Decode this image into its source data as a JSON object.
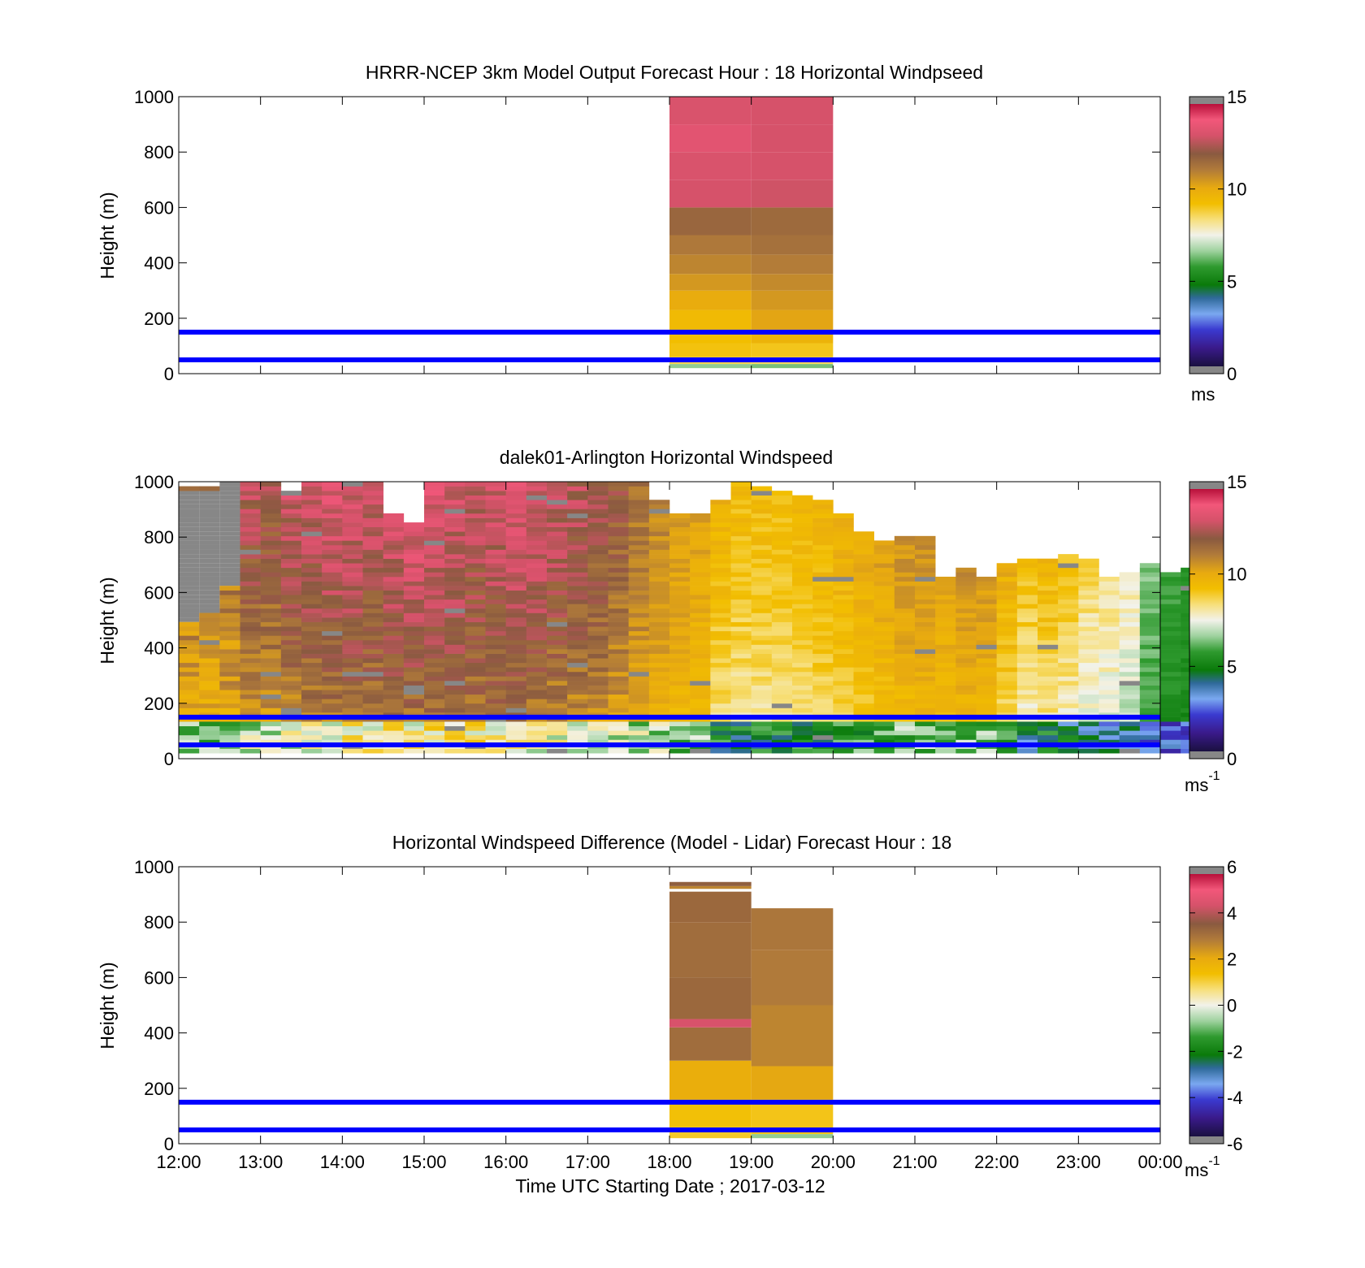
{
  "chart_data": [
    {
      "type": "heatmap",
      "title": "HRRR-NCEP 3km Model Output   Forecast Hour : 18 Horizontal Windpseed",
      "ylabel": "Height (m)",
      "ylim": [
        0,
        1000
      ],
      "yticks": [
        "0",
        "200",
        "400",
        "600",
        "800",
        "1000"
      ],
      "colorbar": {
        "range": [
          0,
          15
        ],
        "ticks": [
          "0",
          "5",
          "10",
          "15"
        ],
        "unit": "ms",
        "unit_sup": ""
      },
      "reference_lines_m": [
        50,
        150
      ],
      "columns": [
        {
          "x_hour": 18,
          "levels": [
            {
              "z0": 20,
              "z1": 35,
              "v": 6.5
            },
            {
              "z0": 35,
              "z1": 60,
              "v": 8.7
            },
            {
              "z0": 60,
              "z1": 110,
              "v": 9.2
            },
            {
              "z0": 110,
              "z1": 160,
              "v": 9.3
            },
            {
              "z0": 160,
              "z1": 230,
              "v": 9.5
            },
            {
              "z0": 230,
              "z1": 300,
              "v": 10.1
            },
            {
              "z0": 300,
              "z1": 360,
              "v": 10.6
            },
            {
              "z0": 360,
              "z1": 430,
              "v": 11.0
            },
            {
              "z0": 430,
              "z1": 500,
              "v": 11.3
            },
            {
              "z0": 500,
              "z1": 600,
              "v": 11.8
            },
            {
              "z0": 600,
              "z1": 700,
              "v": 13.2
            },
            {
              "z0": 700,
              "z1": 800,
              "v": 13.3
            },
            {
              "z0": 800,
              "z1": 900,
              "v": 13.6
            },
            {
              "z0": 900,
              "z1": 1000,
              "v": 13.3
            }
          ]
        },
        {
          "x_hour": 19,
          "levels": [
            {
              "z0": 20,
              "z1": 35,
              "v": 6.3
            },
            {
              "z0": 35,
              "z1": 60,
              "v": 8.6
            },
            {
              "z0": 60,
              "z1": 110,
              "v": 9.1
            },
            {
              "z0": 110,
              "z1": 160,
              "v": 9.8
            },
            {
              "z0": 160,
              "z1": 230,
              "v": 10.3
            },
            {
              "z0": 230,
              "z1": 300,
              "v": 10.6
            },
            {
              "z0": 300,
              "z1": 360,
              "v": 10.9
            },
            {
              "z0": 360,
              "z1": 430,
              "v": 11.2
            },
            {
              "z0": 430,
              "z1": 500,
              "v": 11.5
            },
            {
              "z0": 500,
              "z1": 600,
              "v": 11.7
            },
            {
              "z0": 600,
              "z1": 700,
              "v": 13.1
            },
            {
              "z0": 700,
              "z1": 800,
              "v": 13.2
            },
            {
              "z0": 800,
              "z1": 900,
              "v": 13.2
            },
            {
              "z0": 900,
              "z1": 1000,
              "v": 13.2
            }
          ]
        }
      ]
    },
    {
      "type": "heatmap",
      "title": "dalek01-Arlington  Horizontal Windspeed",
      "ylabel": "Height (m)",
      "ylim": [
        0,
        1000
      ],
      "yticks": [
        "0",
        "200",
        "400",
        "600",
        "800",
        "1000"
      ],
      "colorbar": {
        "range": [
          0,
          15
        ],
        "ticks": [
          "0",
          "5",
          "10",
          "15"
        ],
        "unit": "ms",
        "unit_sup": "-1"
      },
      "reference_lines_m": [
        50,
        150
      ],
      "time_step_hours": 0.25,
      "profiles": [
        {
          "top": 970,
          "lo": 8.8,
          "hi": 12.0,
          "noise": 1.6,
          "gap_lo": 480,
          "gap_hi": 970
        },
        {
          "top": 970,
          "lo": 9.0,
          "hi": 11.5,
          "noise": 1.4,
          "gap_lo": 520,
          "gap_hi": 970
        },
        {
          "top": 1000,
          "lo": 9.2,
          "hi": 11.8,
          "noise": 1.6,
          "gap_lo": 620,
          "gap_hi": 1000
        },
        {
          "top": 1000,
          "lo": 9.5,
          "hi": 12.8,
          "noise": 1.5
        },
        {
          "top": 1000,
          "lo": 9.6,
          "hi": 12.5,
          "noise": 1.4
        },
        {
          "top": 960,
          "lo": 9.8,
          "hi": 13.0,
          "noise": 1.6
        },
        {
          "top": 1000,
          "lo": 10.0,
          "hi": 13.2,
          "noise": 1.5
        },
        {
          "top": 1000,
          "lo": 10.2,
          "hi": 13.4,
          "noise": 1.5
        },
        {
          "top": 1000,
          "lo": 10.5,
          "hi": 13.3,
          "noise": 1.4
        },
        {
          "top": 1000,
          "lo": 10.4,
          "hi": 13.0,
          "noise": 1.5
        },
        {
          "top": 870,
          "lo": 10.6,
          "hi": 13.2,
          "noise": 1.4
        },
        {
          "top": 850,
          "lo": 10.4,
          "hi": 13.4,
          "noise": 1.5
        },
        {
          "top": 1000,
          "lo": 10.6,
          "hi": 13.5,
          "noise": 1.4
        },
        {
          "top": 1000,
          "lo": 10.8,
          "hi": 13.2,
          "noise": 1.4
        },
        {
          "top": 1000,
          "lo": 10.5,
          "hi": 13.0,
          "noise": 1.5
        },
        {
          "top": 1000,
          "lo": 10.6,
          "hi": 13.2,
          "noise": 1.5
        },
        {
          "top": 1000,
          "lo": 10.4,
          "hi": 13.5,
          "noise": 1.4
        },
        {
          "top": 1000,
          "lo": 10.2,
          "hi": 13.4,
          "noise": 1.4
        },
        {
          "top": 1000,
          "lo": 10.0,
          "hi": 13.0,
          "noise": 1.5
        },
        {
          "top": 1000,
          "lo": 9.8,
          "hi": 12.8,
          "noise": 1.5
        },
        {
          "top": 1000,
          "lo": 9.6,
          "hi": 12.6,
          "noise": 1.4
        },
        {
          "top": 1000,
          "lo": 9.4,
          "hi": 12.2,
          "noise": 1.3
        },
        {
          "top": 1000,
          "lo": 9.4,
          "hi": 11.5,
          "noise": 1.0
        },
        {
          "top": 920,
          "lo": 9.2,
          "hi": 11.0,
          "noise": 0.9
        },
        {
          "top": 880,
          "lo": 9.0,
          "hi": 10.6,
          "noise": 0.8
        },
        {
          "top": 880,
          "lo": 8.8,
          "hi": 10.4,
          "noise": 0.8
        },
        {
          "top": 920,
          "lo": 7.4,
          "hi": 9.8,
          "noise": 1.0
        },
        {
          "top": 1000,
          "lo": 7.2,
          "hi": 9.6,
          "noise": 1.0
        },
        {
          "top": 980,
          "lo": 7.4,
          "hi": 9.5,
          "noise": 0.9
        },
        {
          "top": 960,
          "lo": 7.6,
          "hi": 9.4,
          "noise": 0.8
        },
        {
          "top": 940,
          "lo": 7.6,
          "hi": 9.6,
          "noise": 0.8
        },
        {
          "top": 930,
          "lo": 7.8,
          "hi": 9.8,
          "noise": 0.9
        },
        {
          "top": 880,
          "lo": 8.0,
          "hi": 10.0,
          "noise": 0.9
        },
        {
          "top": 820,
          "lo": 8.2,
          "hi": 10.2,
          "noise": 0.8
        },
        {
          "top": 780,
          "lo": 8.4,
          "hi": 10.4,
          "noise": 0.8
        },
        {
          "top": 800,
          "lo": 8.6,
          "hi": 10.8,
          "noise": 0.8
        },
        {
          "top": 800,
          "lo": 8.8,
          "hi": 10.9,
          "noise": 0.8
        },
        {
          "top": 650,
          "lo": 8.6,
          "hi": 10.4,
          "noise": 0.8
        },
        {
          "top": 680,
          "lo": 8.8,
          "hi": 10.8,
          "noise": 0.8
        },
        {
          "top": 650,
          "lo": 8.6,
          "hi": 10.6,
          "noise": 0.8
        },
        {
          "top": 690,
          "lo": 7.6,
          "hi": 10.0,
          "noise": 1.0
        },
        {
          "top": 710,
          "lo": 6.6,
          "hi": 9.4,
          "noise": 1.1
        },
        {
          "top": 720,
          "lo": 7.2,
          "hi": 9.6,
          "noise": 1.0
        },
        {
          "top": 730,
          "lo": 6.8,
          "hi": 9.2,
          "noise": 1.0
        },
        {
          "top": 710,
          "lo": 6.4,
          "hi": 8.6,
          "noise": 1.0
        },
        {
          "top": 650,
          "lo": 6.2,
          "hi": 8.4,
          "noise": 1.0
        },
        {
          "top": 660,
          "lo": 6.0,
          "hi": 8.0,
          "noise": 0.9
        },
        {
          "top": 700,
          "lo": 5.2,
          "hi": 6.4,
          "noise": 0.7
        },
        {
          "top": 660,
          "lo": 4.8,
          "hi": 5.8,
          "noise": 0.6
        },
        {
          "top": 680,
          "lo": 4.6,
          "hi": 5.6,
          "noise": 0.6
        },
        {
          "top": 700,
          "lo": 4.8,
          "hi": 5.8,
          "noise": 0.6
        }
      ]
    },
    {
      "type": "heatmap",
      "title": "Horizontal Windspeed Difference (Model - Lidar) Forecast Hour : 18",
      "ylabel": "Height (m)",
      "xlabel": "Time UTC  Starting Date ; 2017-03-12",
      "ylim": [
        0,
        1000
      ],
      "yticks": [
        "0",
        "200",
        "400",
        "600",
        "800",
        "1000"
      ],
      "xticks": [
        "12:00",
        "13:00",
        "14:00",
        "15:00",
        "16:00",
        "17:00",
        "18:00",
        "19:00",
        "20:00",
        "21:00",
        "22:00",
        "23:00",
        "00:00"
      ],
      "colorbar": {
        "range": [
          -6,
          6
        ],
        "ticks": [
          "-6",
          "-4",
          "-2",
          "0",
          "2",
          "4",
          "6"
        ],
        "unit": "ms",
        "unit_sup": "-1"
      },
      "reference_lines_m": [
        50,
        150
      ],
      "columns": [
        {
          "x_hour": 18,
          "levels": [
            {
              "z0": 20,
              "z1": 60,
              "v": 1.2
            },
            {
              "z0": 60,
              "z1": 160,
              "v": 1.4
            },
            {
              "z0": 160,
              "z1": 300,
              "v": 2.0
            },
            {
              "z0": 300,
              "z1": 420,
              "v": 3.3
            },
            {
              "z0": 420,
              "z1": 450,
              "v": 4.6
            },
            {
              "z0": 450,
              "z1": 600,
              "v": 3.4
            },
            {
              "z0": 600,
              "z1": 800,
              "v": 3.3
            },
            {
              "z0": 800,
              "z1": 910,
              "v": 3.4
            },
            {
              "z0": 920,
              "z1": 930,
              "v": 2.8
            },
            {
              "z0": 930,
              "z1": 945,
              "v": 3.6
            }
          ]
        },
        {
          "x_hour": 19,
          "levels": [
            {
              "z0": 20,
              "z1": 35,
              "v": -0.8
            },
            {
              "z0": 35,
              "z1": 160,
              "v": 1.3
            },
            {
              "z0": 160,
              "z1": 280,
              "v": 2.2
            },
            {
              "z0": 280,
              "z1": 500,
              "v": 2.8
            },
            {
              "z0": 500,
              "z1": 700,
              "v": 3.0
            },
            {
              "z0": 700,
              "z1": 850,
              "v": 3.1
            }
          ]
        }
      ]
    }
  ]
}
